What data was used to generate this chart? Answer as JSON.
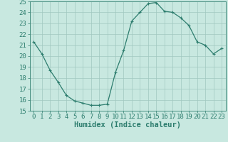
{
  "x_values": [
    0,
    1,
    2,
    3,
    4,
    5,
    6,
    7,
    8,
    9,
    10,
    11,
    12,
    13,
    14,
    15,
    16,
    17,
    18,
    19,
    20,
    21,
    22,
    23
  ],
  "y_values": [
    21.3,
    20.2,
    18.7,
    17.6,
    16.4,
    15.9,
    15.7,
    15.5,
    15.5,
    15.6,
    18.5,
    20.5,
    23.2,
    24.0,
    24.8,
    24.9,
    24.1,
    24.0,
    23.5,
    22.8,
    21.3,
    21.0,
    20.2,
    20.7
  ],
  "ylim": [
    15,
    25
  ],
  "xlim": [
    -0.5,
    23.5
  ],
  "yticks": [
    15,
    16,
    17,
    18,
    19,
    20,
    21,
    22,
    23,
    24,
    25
  ],
  "xticks": [
    0,
    1,
    2,
    3,
    4,
    5,
    6,
    7,
    8,
    9,
    10,
    11,
    12,
    13,
    14,
    15,
    16,
    17,
    18,
    19,
    20,
    21,
    22,
    23
  ],
  "xlabel": "Humidex (Indice chaleur)",
  "line_color": "#2d7d6e",
  "marker": "+",
  "marker_color": "#2d7d6e",
  "bg_color": "#c8e8e0",
  "grid_color": "#a0c8c0",
  "tick_color": "#2d7d6e",
  "xlabel_fontsize": 7.5,
  "tick_fontsize": 6.5,
  "linewidth": 0.9,
  "marker_size": 3.5
}
